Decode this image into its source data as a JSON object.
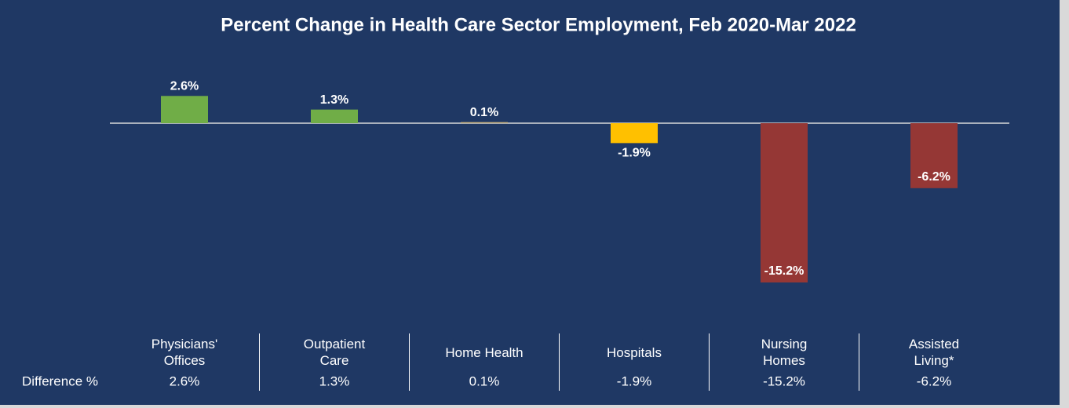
{
  "chart_data": {
    "type": "bar",
    "title": "Percent Change in Health Care Sector Employment, Feb 2020-Mar 2022",
    "categories": [
      "Physicians' Offices",
      "Outpatient Care",
      "Home Health",
      "Hospitals",
      "Nursing Homes",
      "Assisted Living*"
    ],
    "values": [
      2.6,
      1.3,
      0.1,
      -1.9,
      -15.2,
      -6.2
    ],
    "value_labels": [
      "2.6%",
      "1.3%",
      "0.1%",
      "-1.9%",
      "-15.2%",
      "-6.2%"
    ],
    "colors": [
      "#70ad47",
      "#70ad47",
      "#c8b27f",
      "#ffc000",
      "#953735",
      "#953735"
    ],
    "table_row_label": "Difference %"
  }
}
